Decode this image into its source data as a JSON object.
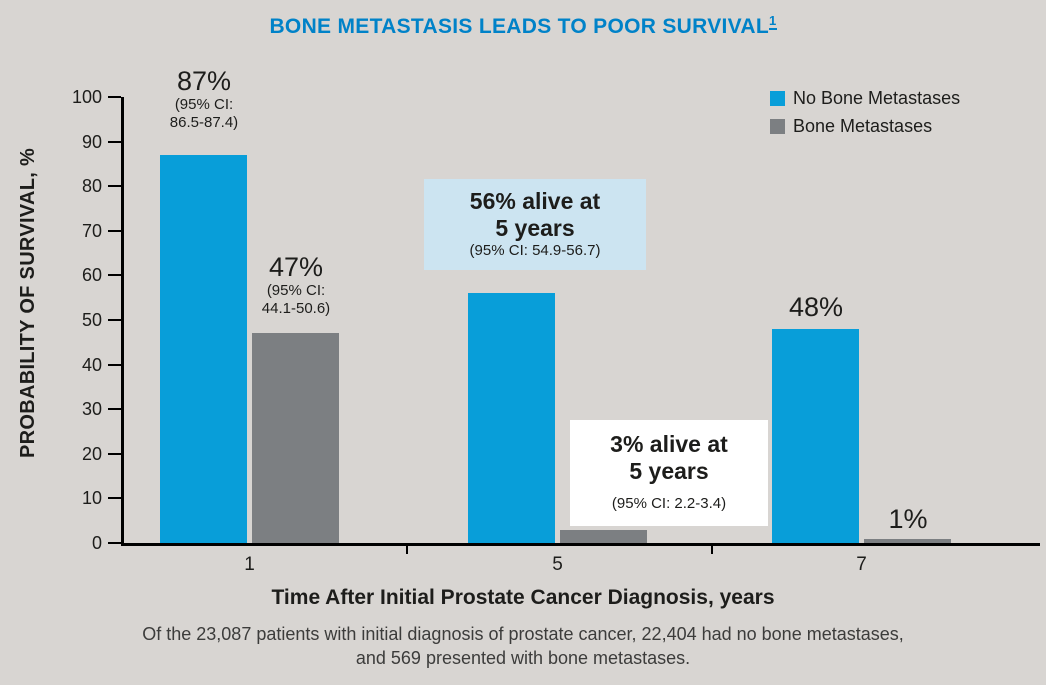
{
  "title": "BONE METASTASIS LEADS TO POOR SURVIVAL",
  "title_ref": "1",
  "chart_data": {
    "type": "bar",
    "title": "BONE METASTASIS LEADS TO POOR SURVIVAL",
    "categories": [
      "1",
      "5",
      "7"
    ],
    "series": [
      {
        "name": "No Bone Metastases",
        "color": "#089ed9",
        "values": [
          87,
          56,
          48
        ]
      },
      {
        "name": "Bone Metastases",
        "color": "#7c7f82",
        "values": [
          47,
          3,
          1
        ]
      }
    ],
    "xlabel": "Time After Initial Prostate Cancer Diagnosis, years",
    "ylabel": "PROBABILITY OF SURVIVAL, %",
    "ylim": [
      0,
      100
    ],
    "yticks": [
      0,
      10,
      20,
      30,
      40,
      50,
      60,
      70,
      80,
      90,
      100
    ],
    "grid": false,
    "legend_position": "top-right",
    "annotations": {
      "year1_no_bone": {
        "pct": "87%",
        "ci_line1": "(95% CI:",
        "ci_line2": "86.5-87.4)"
      },
      "year1_bone": {
        "pct": "47%",
        "ci_line1": "(95% CI:",
        "ci_line2": "44.1-50.6)"
      },
      "year5_no_bone_callout": {
        "line1": "56% alive at",
        "line2": "5 years",
        "ci": "(95% CI: 54.9-56.7)",
        "background": "#cce4f1"
      },
      "year5_bone_callout": {
        "line1": "3% alive at",
        "line2": "5 years",
        "ci": "(95% CI: 2.2-3.4)",
        "background": "#ffffff"
      },
      "year7_no_bone": {
        "pct": "48%"
      },
      "year7_bone": {
        "pct": "1%"
      }
    }
  },
  "footnote": {
    "line1": "Of the 23,087 patients with initial diagnosis of prostate cancer, 22,404 had no bone metastases,",
    "line2": "and 569 presented with bone metastases."
  },
  "colors": {
    "background": "#d8d5d2",
    "title": "#0082c8",
    "axis": "#000000",
    "callout_blue_bg": "#cce4f1",
    "callout_white_bg": "#ffffff"
  }
}
